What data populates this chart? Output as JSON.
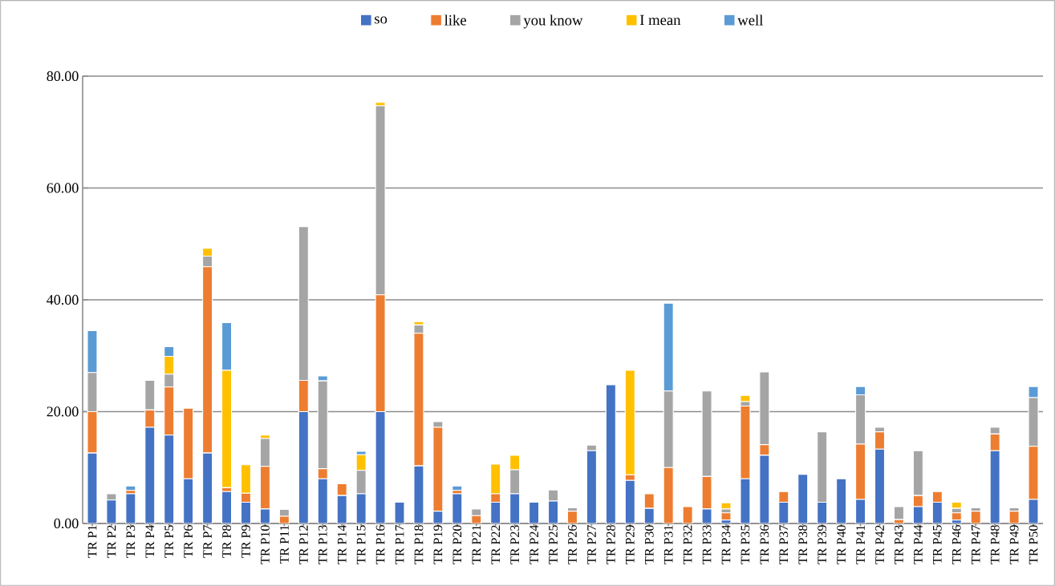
{
  "chart_data": {
    "type": "bar",
    "stacked": true,
    "categories": [
      "TR P1",
      "TR P2",
      "TR P3",
      "TR P4",
      "TR P5",
      "TR P6",
      "TR P7",
      "TR P8",
      "TR P9",
      "TR P10",
      "TR P11",
      "TR P12",
      "TR P13",
      "TR P14",
      "TR P15",
      "TR P16",
      "TR P17",
      "TR P18",
      "TR P19",
      "TR P20",
      "TR P21",
      "TR P22",
      "TR P23",
      "TR P24",
      "TR P25",
      "TR P26",
      "TR P27",
      "TR P28",
      "TR P29",
      "TR P30",
      "TR P31",
      "TR P32",
      "TR P33",
      "TR P34",
      "TR P35",
      "TR P36",
      "TR P37",
      "TR P38",
      "TR P39",
      "TR P40",
      "TR P41",
      "TR P42",
      "TR P43",
      "TR P44",
      "TR P45",
      "TR P46",
      "TR P47",
      "TR P48",
      "TR P49",
      "TR P50"
    ],
    "series": [
      {
        "name": "so",
        "color": "#4472c4",
        "values": [
          12.6,
          4.2,
          5.3,
          17.2,
          15.8,
          8.0,
          12.6,
          5.7,
          3.8,
          2.6,
          null,
          20.0,
          8.0,
          5.0,
          5.3,
          20.0,
          3.8,
          10.3,
          2.2,
          5.3,
          null,
          3.8,
          5.3,
          3.8,
          4.0,
          null,
          13.0,
          24.8,
          7.7,
          2.7,
          null,
          null,
          2.6,
          0.6,
          8.0,
          12.2,
          3.8,
          8.8,
          3.8,
          8.0,
          4.3,
          13.3,
          null,
          3.0,
          3.8,
          0.6,
          null,
          13.0,
          null,
          4.3
        ]
      },
      {
        "name": "like",
        "color": "#ed7d31",
        "values": [
          7.4,
          null,
          0.6,
          3.1,
          8.6,
          12.6,
          33.3,
          0.7,
          1.6,
          7.6,
          1.3,
          5.6,
          1.8,
          2.1,
          null,
          20.9,
          null,
          23.7,
          15.0,
          0.6,
          1.4,
          1.5,
          null,
          null,
          null,
          2.2,
          null,
          null,
          1.0,
          2.6,
          10.0,
          3.0,
          5.8,
          1.3,
          13.0,
          1.9,
          1.9,
          null,
          null,
          null,
          9.9,
          3.1,
          0.7,
          2.0,
          1.9,
          1.3,
          2.2,
          3.0,
          2.2,
          9.5
        ]
      },
      {
        "name": "you know",
        "color": "#a5a5a5",
        "values": [
          7.0,
          1.1,
          null,
          5.3,
          2.3,
          null,
          1.9,
          null,
          null,
          5.0,
          1.2,
          27.5,
          15.7,
          null,
          4.2,
          33.8,
          null,
          1.5,
          1.0,
          null,
          1.2,
          null,
          4.3,
          null,
          2.0,
          0.6,
          1.0,
          null,
          null,
          null,
          13.7,
          null,
          15.3,
          0.7,
          0.8,
          13.0,
          null,
          null,
          12.6,
          null,
          8.8,
          0.8,
          2.3,
          8.0,
          null,
          0.8,
          0.6,
          1.2,
          0.6,
          8.7
        ]
      },
      {
        "name": "I mean",
        "color": "#ffc000",
        "values": [
          null,
          null,
          null,
          null,
          3.2,
          null,
          1.4,
          21.0,
          5.1,
          0.6,
          null,
          null,
          null,
          null,
          2.8,
          0.6,
          null,
          0.6,
          null,
          null,
          null,
          5.3,
          2.6,
          null,
          null,
          null,
          null,
          null,
          18.7,
          null,
          null,
          null,
          null,
          1.1,
          1.1,
          null,
          null,
          null,
          null,
          null,
          null,
          null,
          null,
          null,
          null,
          1.1,
          null,
          null,
          null,
          null
        ]
      },
      {
        "name": "well",
        "color": "#5b9bd5",
        "values": [
          7.5,
          null,
          0.8,
          null,
          1.7,
          null,
          null,
          8.5,
          null,
          null,
          null,
          null,
          0.9,
          null,
          0.6,
          null,
          null,
          null,
          null,
          0.8,
          null,
          null,
          null,
          null,
          null,
          null,
          null,
          null,
          null,
          null,
          15.7,
          null,
          null,
          null,
          null,
          null,
          null,
          null,
          null,
          null,
          1.5,
          null,
          null,
          null,
          null,
          null,
          null,
          null,
          null,
          2.0
        ]
      }
    ],
    "ylim": [
      0,
      80
    ],
    "yticks": [
      {
        "value": 0,
        "label": "0.00"
      },
      {
        "value": 20,
        "label": "20.00"
      },
      {
        "value": 40,
        "label": "40.00"
      },
      {
        "value": 60,
        "label": "60.00"
      },
      {
        "value": 80,
        "label": "80.00"
      }
    ],
    "grid": "y",
    "legend": "top"
  }
}
